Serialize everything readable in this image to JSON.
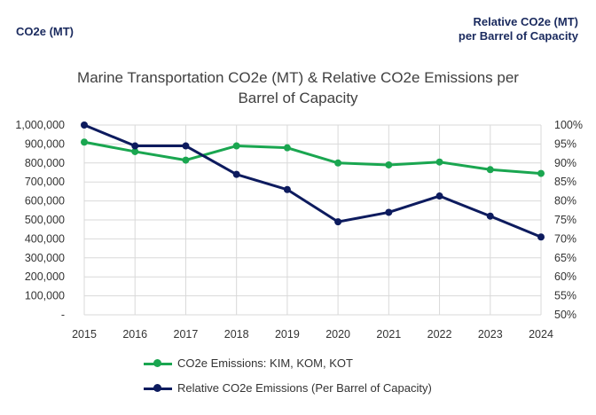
{
  "header": {
    "left_axis_title": "CO2e (MT)",
    "right_axis_title_line1": "Relative CO2e (MT)",
    "right_axis_title_line2": "per Barrel of Capacity"
  },
  "chart_data": {
    "type": "line",
    "title_line1": "Marine Transportation CO2e (MT) & Relative CO2e Emissions per",
    "title_line2": "Barrel of Capacity",
    "categories": [
      "2015",
      "2016",
      "2017",
      "2018",
      "2019",
      "2020",
      "2021",
      "2022",
      "2023",
      "2024"
    ],
    "y_left": {
      "min": 0,
      "max": 1000000,
      "step": 100000,
      "tick_labels": [
        "-",
        "100,000",
        "200,000",
        "300,000",
        "400,000",
        "500,000",
        "600,000",
        "700,000",
        "800,000",
        "900,000",
        "1,000,000"
      ]
    },
    "y_right": {
      "min": 50,
      "max": 100,
      "step": 5,
      "tick_labels": [
        "50%",
        "55%",
        "60%",
        "65%",
        "70%",
        "75%",
        "80%",
        "85%",
        "90%",
        "95%",
        "100%"
      ]
    },
    "grid": true,
    "legend_position": "bottom",
    "series": [
      {
        "name": "CO2e Emissions: KIM, KOM, KOT",
        "axis": "left",
        "color": "#1aa650",
        "values": [
          910000,
          860000,
          815000,
          890000,
          880000,
          800000,
          790000,
          805000,
          765000,
          745000
        ]
      },
      {
        "name": "Relative CO2e Emissions (Per Barrel of Capacity)",
        "axis": "right",
        "color": "#0d1b5e",
        "values": [
          100,
          94.5,
          94.5,
          87,
          83,
          74.5,
          77,
          81.3,
          76,
          70.5
        ]
      }
    ]
  }
}
